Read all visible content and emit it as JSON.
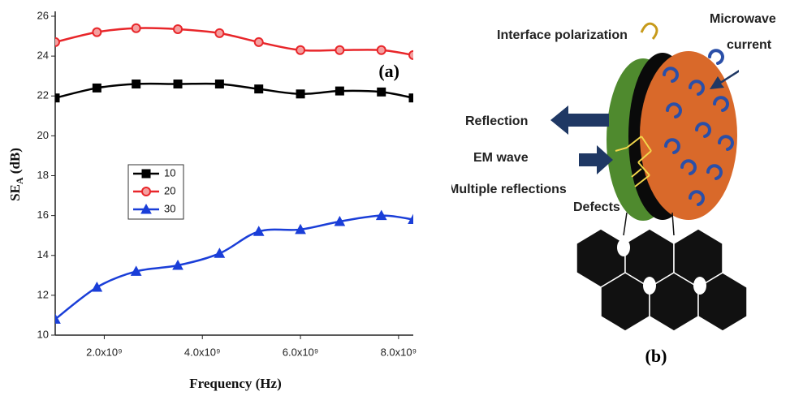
{
  "chart_data": {
    "type": "line",
    "annotation": "(a)",
    "x_label": "Frequency (Hz)",
    "y_label": {
      "main": "SE",
      "sub": "A",
      "rest": " (dB)"
    },
    "xlim": [
      1000000000,
      8300000000
    ],
    "ylim": [
      10,
      26
    ],
    "xticks": [
      {
        "value": 2000000000,
        "label": "2.0x10⁹"
      },
      {
        "value": 4000000000,
        "label": "4.0x10⁹"
      },
      {
        "value": 6000000000,
        "label": "6.0x10⁹"
      },
      {
        "value": 8000000000,
        "label": "8.0x10⁹"
      }
    ],
    "yticks": [
      10,
      12,
      14,
      16,
      18,
      20,
      22,
      24,
      26
    ],
    "x": [
      1000000000,
      1850000000,
      2650000000,
      3500000000,
      4350000000,
      5150000000,
      6000000000,
      6800000000,
      7650000000,
      8300000000
    ],
    "series": [
      {
        "name": "10",
        "color": "#000000",
        "marker": "square",
        "values": [
          21.9,
          22.4,
          22.6,
          22.6,
          22.6,
          22.35,
          22.1,
          22.25,
          22.2,
          21.9
        ]
      },
      {
        "name": "20",
        "color": "#e8262a",
        "marker": "circle",
        "values": [
          24.7,
          25.2,
          25.4,
          25.35,
          25.15,
          24.7,
          24.3,
          24.3,
          24.3,
          24.05
        ]
      },
      {
        "name": "30",
        "color": "#1a3ed8",
        "marker": "triangle",
        "values": [
          10.8,
          12.4,
          13.2,
          13.5,
          14.1,
          15.2,
          15.3,
          15.7,
          16.0,
          15.8
        ]
      }
    ]
  },
  "diagram": {
    "interface": "Interface polarization",
    "microwave": [
      "Microwave",
      "current"
    ],
    "reflection": "Reflection",
    "em_wave": "EM wave",
    "multiple": "Multiple reflections",
    "defects": "Defects",
    "label": "(b)"
  }
}
